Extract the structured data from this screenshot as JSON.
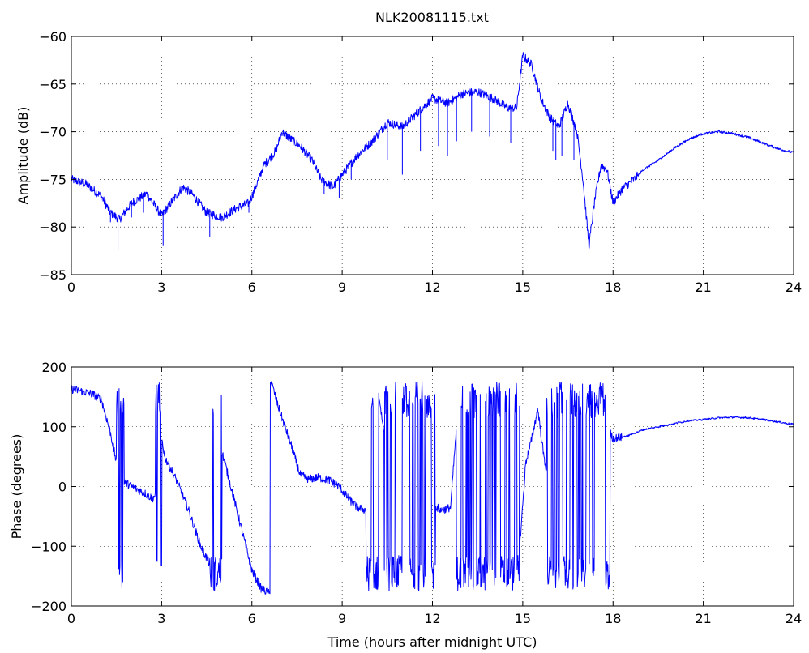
{
  "figure": {
    "title": "NLK20081115.txt",
    "background": "#ffffff",
    "line_color": "#0000ff"
  },
  "chart_data": [
    {
      "type": "line",
      "title": "NLK20081115.txt",
      "xlabel": "",
      "ylabel": "Amplitude (dB)",
      "xlim": [
        0,
        24
      ],
      "ylim": [
        -85,
        -60
      ],
      "xticks": [
        "0",
        "3",
        "6",
        "9",
        "12",
        "15",
        "18",
        "21",
        "24"
      ],
      "yticks": [
        "-85",
        "-80",
        "-75",
        "-70",
        "-65",
        "-60"
      ],
      "grid": true,
      "series": [
        {
          "color": "#0000ff",
          "x": [
            0,
            0.5,
            1.0,
            1.3,
            1.6,
            2.0,
            2.5,
            3.0,
            3.3,
            3.7,
            4.0,
            4.5,
            5.0,
            5.5,
            5.9,
            6.1,
            6.4,
            6.8,
            7.0,
            7.3,
            7.6,
            8.0,
            8.3,
            8.7,
            9.0,
            9.5,
            10.0,
            10.5,
            11.0,
            11.5,
            12.0,
            12.5,
            13.0,
            13.5,
            14.0,
            14.5,
            14.8,
            15.0,
            15.3,
            15.6,
            15.9,
            16.2,
            16.5,
            16.8,
            17.0,
            17.2,
            17.4,
            17.6,
            17.8,
            18.0,
            18.3,
            18.7,
            19.0,
            19.5,
            20.0,
            20.5,
            21.0,
            21.5,
            22.0,
            22.5,
            23.0,
            23.5,
            24.0
          ],
          "y": [
            -75,
            -75.5,
            -76.8,
            -78.5,
            -79.2,
            -77.5,
            -76.5,
            -78.8,
            -77.5,
            -75.8,
            -76.5,
            -78.5,
            -79,
            -78,
            -77.5,
            -76,
            -73.5,
            -72,
            -70,
            -70.8,
            -71.5,
            -73,
            -75,
            -75.8,
            -74.5,
            -72.5,
            -71,
            -69,
            -69.5,
            -68,
            -66.5,
            -67,
            -66,
            -65.8,
            -66.5,
            -67.5,
            -67.5,
            -62,
            -63,
            -66.5,
            -68.5,
            -69.5,
            -67,
            -70,
            -75,
            -82,
            -77,
            -73.5,
            -74,
            -77.5,
            -76,
            -75,
            -74,
            -73,
            -71.8,
            -70.8,
            -70.2,
            -70,
            -70.2,
            -70.6,
            -71.2,
            -71.8,
            -72.2
          ],
          "spikes": [
            [
              1.3,
              -79.5
            ],
            [
              1.55,
              -82.5
            ],
            [
              2.0,
              -79
            ],
            [
              2.4,
              -78.5
            ],
            [
              3.05,
              -82
            ],
            [
              4.6,
              -81
            ],
            [
              5.9,
              -78.5
            ],
            [
              8.4,
              -76.5
            ],
            [
              8.9,
              -77
            ],
            [
              9.3,
              -75
            ],
            [
              10.5,
              -73
            ],
            [
              11.0,
              -74.5
            ],
            [
              11.6,
              -72
            ],
            [
              12.2,
              -71.5
            ],
            [
              12.5,
              -72.5
            ],
            [
              12.8,
              -71
            ],
            [
              13.3,
              -70
            ],
            [
              13.9,
              -70.5
            ],
            [
              14.6,
              -71.2
            ],
            [
              16.0,
              -72
            ],
            [
              16.1,
              -73
            ],
            [
              16.3,
              -72.5
            ],
            [
              16.7,
              -73
            ]
          ]
        }
      ]
    },
    {
      "type": "line",
      "title": "",
      "xlabel": "Time (hours after midnight UTC)",
      "ylabel": "Phase (degrees)",
      "xlim": [
        0,
        24
      ],
      "ylim": [
        -200,
        200
      ],
      "xticks": [
        "0",
        "3",
        "6",
        "9",
        "12",
        "15",
        "18",
        "21",
        "24"
      ],
      "yticks": [
        "-200",
        "-100",
        "0",
        "100",
        "200"
      ],
      "grid": true,
      "series": [
        {
          "color": "#0000ff",
          "x": [
            0,
            0.3,
            0.7,
            1.0,
            1.3,
            1.5,
            1.6,
            1.7,
            2.0,
            2.4,
            2.7,
            2.85,
            2.95,
            3.1,
            3.5,
            3.9,
            4.3,
            4.6,
            4.8,
            5.0,
            5.3,
            5.7,
            6.0,
            6.3,
            6.6,
            6.61,
            6.9,
            7.3,
            7.6,
            7.9,
            8.2,
            8.6,
            8.9,
            9.2,
            9.5,
            9.8,
            9.9,
            10.2,
            10.5,
            10.8,
            11.2,
            11.6,
            12.0,
            12.3,
            12.6,
            12.8,
            13.2,
            13.6,
            14.0,
            14.4,
            14.7,
            14.8,
            14.9,
            15.1,
            15.3,
            15.5,
            15.7,
            15.9,
            16.2,
            16.5,
            16.8,
            17.1,
            17.4,
            17.7,
            17.9,
            18.0,
            18.5,
            19.0,
            19.5,
            20.0,
            20.5,
            21.0,
            21.5,
            22.0,
            22.5,
            23.0,
            23.5,
            24.0
          ],
          "y": [
            163,
            160,
            155,
            145,
            90,
            40,
            -10,
            10,
            0,
            -10,
            -20,
            -10,
            100,
            50,
            10,
            -40,
            -100,
            -130,
            100,
            60,
            0,
            -80,
            -140,
            -170,
            -180,
            180,
            130,
            70,
            20,
            12,
            15,
            10,
            0,
            -20,
            -35,
            -40,
            140,
            160,
            50,
            -20,
            -30,
            -25,
            -30,
            -40,
            -35,
            100,
            80,
            60,
            40,
            20,
            0,
            -180,
            -100,
            40,
            80,
            130,
            50,
            0,
            -20,
            10,
            40,
            90,
            110,
            100,
            90,
            80,
            85,
            95,
            100,
            105,
            110,
            112,
            115,
            116,
            115,
            112,
            108,
            104
          ],
          "flip_zones": [
            [
              1.5,
              1.75
            ],
            [
              2.8,
              3.0
            ],
            [
              4.6,
              5.0
            ],
            [
              9.8,
              10.2
            ],
            [
              10.4,
              12.1
            ],
            [
              12.8,
              14.9
            ],
            [
              15.8,
              17.9
            ]
          ]
        }
      ]
    }
  ]
}
